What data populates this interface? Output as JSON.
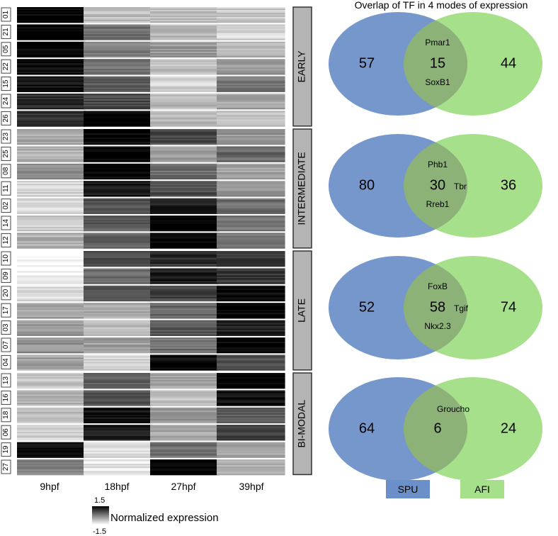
{
  "heatmap": {
    "time_points": [
      "9hpf",
      "18hpf",
      "27hpf",
      "39hpf"
    ],
    "groups": [
      {
        "label": "EARLY",
        "clusters": [
          {
            "id": "01",
            "values": [
              1.5,
              -0.7,
              -0.8,
              -0.9
            ]
          },
          {
            "id": "21",
            "values": [
              1.5,
              0.2,
              -0.7,
              -1.0
            ]
          },
          {
            "id": "05",
            "values": [
              1.5,
              0.0,
              -0.3,
              -0.6
            ]
          },
          {
            "id": "22",
            "values": [
              1.4,
              0.1,
              -0.8,
              -0.3
            ]
          },
          {
            "id": "15",
            "values": [
              1.3,
              0.4,
              -1.0,
              0.1
            ]
          },
          {
            "id": "24",
            "values": [
              1.0,
              0.6,
              -0.7,
              -0.4
            ]
          },
          {
            "id": "26",
            "values": [
              0.9,
              1.5,
              -0.7,
              -0.8
            ]
          }
        ]
      },
      {
        "label": "INTERMEDIATE",
        "clusters": [
          {
            "id": "23",
            "values": [
              -0.5,
              1.5,
              0.6,
              -0.3
            ]
          },
          {
            "id": "25",
            "values": [
              -0.6,
              1.5,
              -0.4,
              0.3
            ]
          },
          {
            "id": "08",
            "values": [
              -0.2,
              1.5,
              0.2,
              -0.4
            ]
          },
          {
            "id": "11",
            "values": [
              -1.0,
              1.2,
              0.6,
              -0.2
            ]
          },
          {
            "id": "02",
            "values": [
              -1.1,
              0.6,
              1.1,
              0.2
            ]
          },
          {
            "id": "14",
            "values": [
              -0.9,
              0.4,
              1.5,
              0.1
            ]
          },
          {
            "id": "12",
            "values": [
              -0.6,
              0.3,
              1.5,
              0.1
            ]
          }
        ]
      },
      {
        "label": "LATE",
        "clusters": [
          {
            "id": "10",
            "values": [
              -1.5,
              0.7,
              1.0,
              0.8
            ]
          },
          {
            "id": "09",
            "values": [
              -1.4,
              0.2,
              1.2,
              0.9
            ]
          },
          {
            "id": "20",
            "values": [
              -1.1,
              0.5,
              0.7,
              1.4
            ]
          },
          {
            "id": "17",
            "values": [
              -0.4,
              -0.5,
              0.3,
              1.5
            ]
          },
          {
            "id": "03",
            "values": [
              -0.3,
              -0.7,
              0.5,
              1.1
            ]
          },
          {
            "id": "07",
            "values": [
              -0.2,
              -0.4,
              0.2,
              1.5
            ]
          },
          {
            "id": "04",
            "values": [
              -0.4,
              -1.0,
              1.4,
              0.6
            ]
          }
        ]
      },
      {
        "label": "BI-MODAL",
        "clusters": [
          {
            "id": "13",
            "values": [
              -0.8,
              0.4,
              -0.5,
              1.5
            ]
          },
          {
            "id": "16",
            "values": [
              -0.6,
              0.6,
              -0.8,
              1.3
            ]
          },
          {
            "id": "18",
            "values": [
              -0.7,
              1.3,
              -0.3,
              0.4
            ]
          },
          {
            "id": "06",
            "values": [
              -0.9,
              1.2,
              -0.5,
              0.8
            ]
          },
          {
            "id": "19",
            "values": [
              1.5,
              -1.1,
              0.2,
              -0.4
            ]
          },
          {
            "id": "27",
            "values": [
              0.0,
              -1.2,
              1.5,
              -0.5
            ]
          }
        ]
      }
    ],
    "legend": {
      "title": "Normalized expression",
      "max": "1.5",
      "min": "-1.5"
    }
  },
  "venn": {
    "title": "Overlap of TF in 4 modes of expression",
    "colors": {
      "spu": "#6b8fc8",
      "afi": "#a6e08a",
      "overlap": "#8db278"
    },
    "diagrams": [
      {
        "left": "57",
        "center": "15",
        "right": "44",
        "genes": [
          "Pmar1",
          "SoxB1"
        ]
      },
      {
        "left": "80",
        "center": "30",
        "right": "36",
        "genes": [
          "Phb1",
          "Tbr",
          "Rreb1"
        ]
      },
      {
        "left": "52",
        "center": "58",
        "right": "74",
        "genes": [
          "FoxB",
          "Tgif",
          "Nkx2.3"
        ]
      },
      {
        "left": "64",
        "center": "6",
        "right": "24",
        "genes": [
          "Groucho"
        ]
      }
    ],
    "legend": {
      "spu": "SPU",
      "afi": "AFI"
    }
  }
}
